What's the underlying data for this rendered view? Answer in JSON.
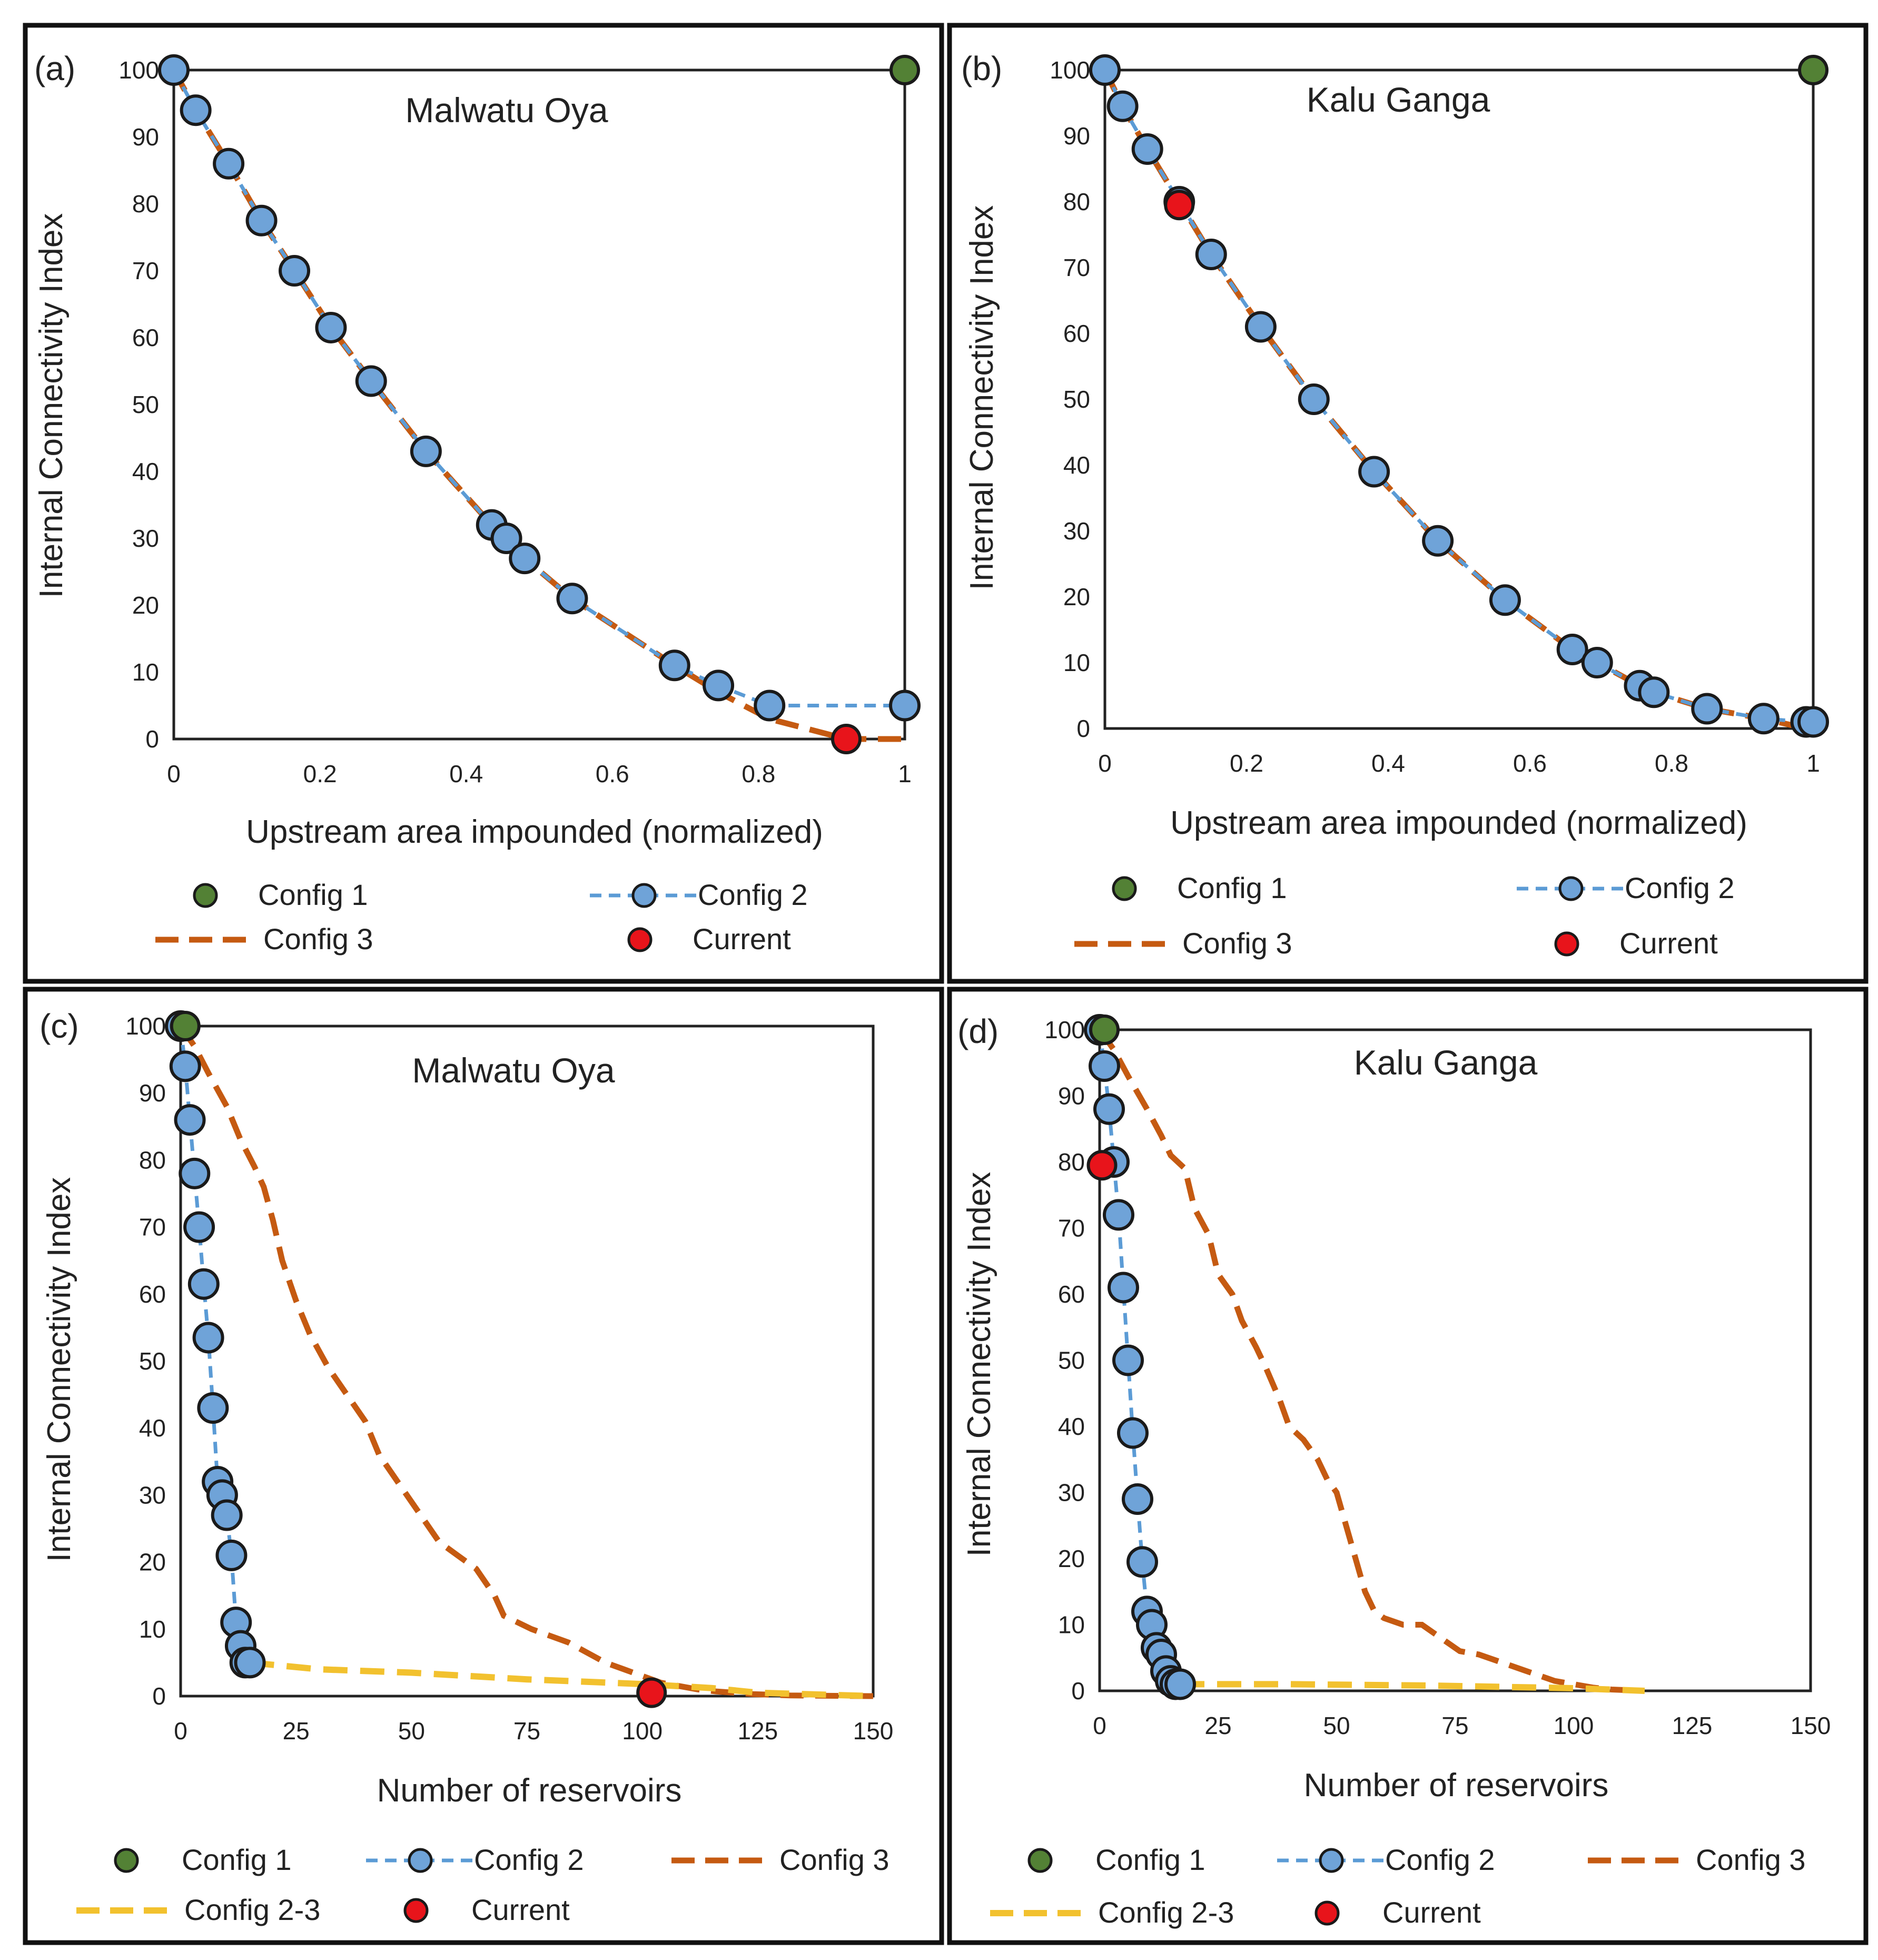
{
  "colors": {
    "config1": "#538135",
    "config2_fill": "#6fa3d8",
    "config2_line": "#5b9bd5",
    "config3": "#c55a11",
    "config23": "#f2c12e",
    "current": "#e8141b"
  },
  "chart_data": [
    {
      "type": "scatter",
      "panel": "(a)",
      "title": "Malwatu Oya",
      "xlabel": "Upstream area impounded (normalized)",
      "ylabel": "Internal Connectivity Index",
      "xlim": [
        0,
        1
      ],
      "ylim": [
        0,
        100
      ],
      "xticks": [
        0,
        0.2,
        0.4,
        0.6,
        0.8,
        1
      ],
      "xtick_labels": [
        "0",
        "0.2",
        "0.4",
        "0.6",
        "0.8",
        "1"
      ],
      "yticks": [
        0,
        10,
        20,
        30,
        40,
        50,
        60,
        70,
        80,
        90,
        100
      ],
      "ytick_labels": [
        "0",
        "10",
        "20",
        "30",
        "40",
        "50",
        "60",
        "70",
        "80",
        "90",
        "100"
      ],
      "series": [
        {
          "name": "Config 1",
          "style": "point",
          "colorKey": "config1",
          "x": [
            1
          ],
          "y": [
            100
          ]
        },
        {
          "name": "Config 2",
          "style": "dash-marker",
          "colorKey": "config2_line",
          "x": [
            0,
            0.03,
            0.075,
            0.12,
            0.165,
            0.215,
            0.27,
            0.345,
            0.435,
            0.455,
            0.48,
            0.545,
            0.685,
            0.745,
            0.815,
            1.0
          ],
          "y": [
            100,
            94,
            86,
            77.5,
            70,
            61.5,
            53.5,
            43,
            32,
            30,
            27,
            21,
            11,
            8,
            5,
            5
          ]
        },
        {
          "name": "Config 3",
          "style": "dash",
          "colorKey": "config3",
          "x": [
            0,
            0.03,
            0.075,
            0.12,
            0.165,
            0.215,
            0.27,
            0.345,
            0.435,
            0.455,
            0.48,
            0.545,
            0.685,
            0.745,
            0.815,
            0.92,
            1.0
          ],
          "y": [
            100,
            94,
            86,
            77.5,
            70,
            61.5,
            53.5,
            43,
            32,
            30,
            27,
            21,
            11,
            7,
            3,
            0,
            0
          ]
        },
        {
          "name": "Current",
          "style": "point",
          "colorKey": "current",
          "x": [
            0.92
          ],
          "y": [
            0
          ]
        }
      ],
      "legend": [
        {
          "label": "Config 1",
          "style": "point",
          "colorKey": "config1"
        },
        {
          "label": "Config 2",
          "style": "dash-marker",
          "colorKey": "config2_line"
        },
        {
          "label": "Config 3",
          "style": "dash",
          "colorKey": "config3"
        },
        {
          "label": "Current",
          "style": "point",
          "colorKey": "current"
        }
      ]
    },
    {
      "type": "scatter",
      "panel": "(b)",
      "title": "Kalu Ganga",
      "xlabel": "Upstream area impounded (normalized)",
      "ylabel": "Internal Connectivity Index",
      "xlim": [
        0,
        1
      ],
      "ylim": [
        0,
        100
      ],
      "xticks": [
        0,
        0.2,
        0.4,
        0.6,
        0.8,
        1
      ],
      "xtick_labels": [
        "0",
        "0.2",
        "0.4",
        "0.6",
        "0.8",
        "1"
      ],
      "yticks": [
        0,
        10,
        20,
        30,
        40,
        50,
        60,
        70,
        80,
        90,
        100
      ],
      "ytick_labels": [
        "0",
        "10",
        "20",
        "30",
        "40",
        "50",
        "60",
        "70",
        "80",
        "90",
        "100"
      ],
      "series": [
        {
          "name": "Config 1",
          "style": "point",
          "colorKey": "config1",
          "x": [
            1
          ],
          "y": [
            100
          ]
        },
        {
          "name": "Config 2",
          "style": "dash-marker",
          "colorKey": "config2_line",
          "x": [
            0,
            0.025,
            0.06,
            0.105,
            0.15,
            0.22,
            0.295,
            0.38,
            0.47,
            0.565,
            0.66,
            0.695,
            0.755,
            0.775,
            0.85,
            0.93,
            0.99,
            1.0
          ],
          "y": [
            100,
            94.5,
            88,
            80,
            72,
            61,
            50,
            39,
            28.5,
            19.5,
            12,
            10,
            6.5,
            5.5,
            3,
            1.5,
            1,
            1
          ]
        },
        {
          "name": "Config 3",
          "style": "dash",
          "colorKey": "config3",
          "x": [
            0,
            0.025,
            0.06,
            0.105,
            0.15,
            0.22,
            0.295,
            0.38,
            0.47,
            0.565,
            0.66,
            0.695,
            0.755,
            0.775,
            0.85,
            0.93,
            0.97,
            1.0
          ],
          "y": [
            100,
            94.5,
            88,
            80,
            72,
            61,
            50,
            39,
            28.5,
            19.5,
            12,
            10,
            6.5,
            5.5,
            3,
            1.5,
            0.5,
            0
          ]
        },
        {
          "name": "Current",
          "style": "point",
          "colorKey": "current",
          "x": [
            0.105
          ],
          "y": [
            79.5
          ]
        }
      ],
      "legend": [
        {
          "label": "Config 1",
          "style": "point",
          "colorKey": "config1"
        },
        {
          "label": "Config 2",
          "style": "dash-marker",
          "colorKey": "config2_line"
        },
        {
          "label": "Config 3",
          "style": "dash",
          "colorKey": "config3"
        },
        {
          "label": "Current",
          "style": "point",
          "colorKey": "current"
        }
      ]
    },
    {
      "type": "scatter",
      "panel": "(c)",
      "title": "Malwatu Oya",
      "xlabel": "Number of reservoirs",
      "ylabel": "Internal Connectivity Index",
      "xlim": [
        0,
        150
      ],
      "ylim": [
        0,
        100
      ],
      "xticks": [
        0,
        25,
        50,
        75,
        100,
        125,
        150
      ],
      "xtick_labels": [
        "0",
        "25",
        "50",
        "75",
        "100",
        "125",
        "150"
      ],
      "yticks": [
        0,
        10,
        20,
        30,
        40,
        50,
        60,
        70,
        80,
        90,
        100
      ],
      "ytick_labels": [
        "0",
        "10",
        "20",
        "30",
        "40",
        "50",
        "60",
        "70",
        "80",
        "90",
        "100"
      ],
      "series": [
        {
          "name": "Config 1",
          "style": "point",
          "colorKey": "config1",
          "x": [
            1
          ],
          "y": [
            100
          ]
        },
        {
          "name": "Config 2",
          "style": "dash-marker",
          "colorKey": "config2_line",
          "x": [
            0,
            1,
            2,
            3,
            4,
            5,
            6,
            7,
            8,
            9,
            10,
            11,
            12,
            13,
            14,
            15
          ],
          "y": [
            100,
            94,
            86,
            78,
            70,
            61.5,
            53.5,
            43,
            32,
            30,
            27,
            21,
            11,
            7.5,
            5,
            5
          ]
        },
        {
          "name": "Config 3",
          "style": "dash",
          "colorKey": "config3",
          "x": [
            0,
            3,
            6,
            10,
            13,
            16,
            18,
            20,
            22,
            25,
            28,
            32,
            36,
            40,
            43,
            47,
            50,
            53,
            56,
            60,
            64,
            68,
            70,
            73,
            76,
            80,
            84,
            88,
            92,
            96,
            100,
            104,
            108,
            112,
            116,
            120,
            124,
            128,
            132,
            140,
            150
          ],
          "y": [
            100,
            97,
            93,
            88,
            83,
            79,
            76,
            71,
            65,
            59,
            54,
            49,
            45,
            41,
            36,
            32,
            29,
            26,
            23,
            21,
            19,
            15,
            12,
            11,
            10,
            9,
            8,
            6.5,
            5,
            4,
            3,
            2,
            1.5,
            1,
            0.7,
            0.5,
            0.3,
            0.2,
            0.1,
            0.05,
            0
          ]
        },
        {
          "name": "Config 2-3",
          "style": "dash",
          "colorKey": "config23",
          "x": [
            15,
            30,
            50,
            75,
            100,
            115,
            125,
            150
          ],
          "y": [
            5,
            4,
            3.5,
            2.5,
            1.8,
            1.2,
            0.5,
            0
          ]
        },
        {
          "name": "Current",
          "style": "point",
          "colorKey": "current",
          "x": [
            102
          ],
          "y": [
            0.5
          ]
        }
      ],
      "legend": [
        {
          "label": "Config 1",
          "style": "point",
          "colorKey": "config1"
        },
        {
          "label": "Config 2",
          "style": "dash-marker",
          "colorKey": "config2_line"
        },
        {
          "label": "Config 3",
          "style": "dash",
          "colorKey": "config3"
        },
        {
          "label": "Config 2-3",
          "style": "dash",
          "colorKey": "config23"
        },
        {
          "label": "Current",
          "style": "point",
          "colorKey": "current"
        }
      ]
    },
    {
      "type": "scatter",
      "panel": "(d)",
      "title": "Kalu Ganga",
      "xlabel": "Number of reservoirs",
      "ylabel": "Internal Connectivity Index",
      "xlim": [
        0,
        150
      ],
      "ylim": [
        0,
        100
      ],
      "xticks": [
        0,
        25,
        50,
        75,
        100,
        125,
        150
      ],
      "xtick_labels": [
        "0",
        "25",
        "50",
        "75",
        "100",
        "125",
        "150"
      ],
      "yticks": [
        0,
        10,
        20,
        30,
        40,
        50,
        60,
        70,
        80,
        90,
        100
      ],
      "ytick_labels": [
        "0",
        "10",
        "20",
        "30",
        "40",
        "50",
        "60",
        "70",
        "80",
        "90",
        "100"
      ],
      "series": [
        {
          "name": "Config 1",
          "style": "point",
          "colorKey": "config1",
          "x": [
            1
          ],
          "y": [
            100
          ]
        },
        {
          "name": "Config 2",
          "style": "dash-marker",
          "colorKey": "config2_line",
          "x": [
            0,
            1,
            2,
            3,
            4,
            5,
            6,
            7,
            8,
            9,
            10,
            11,
            12,
            13,
            14,
            15,
            16,
            17
          ],
          "y": [
            100,
            94.5,
            88,
            80,
            72,
            61,
            50,
            39,
            29,
            19.5,
            12,
            10,
            6.5,
            5.5,
            3,
            1.5,
            1,
            1
          ]
        },
        {
          "name": "Config 3",
          "style": "dash",
          "colorKey": "config3",
          "x": [
            0,
            3,
            6,
            10,
            13,
            15,
            18,
            20,
            23,
            25,
            28,
            30,
            33,
            35,
            38,
            40,
            43,
            46,
            48,
            50,
            52,
            54,
            56,
            58,
            60,
            64,
            68,
            72,
            76,
            80,
            84,
            88,
            92,
            96,
            100,
            104,
            108,
            115
          ],
          "y": [
            100,
            97,
            93,
            88,
            84,
            81,
            79,
            73,
            69,
            63,
            60,
            56,
            52,
            49,
            44,
            40,
            38,
            35,
            32,
            30,
            25,
            20,
            15,
            12,
            11,
            10,
            10,
            8,
            6,
            5.5,
            4.5,
            3.5,
            2.5,
            1.5,
            1,
            0.5,
            0.2,
            0
          ]
        },
        {
          "name": "Config 2-3",
          "style": "dash",
          "colorKey": "config23",
          "x": [
            17,
            40,
            70,
            100,
            115
          ],
          "y": [
            1,
            1,
            0.8,
            0.4,
            0
          ]
        },
        {
          "name": "Current",
          "style": "point",
          "colorKey": "current",
          "x": [
            0.5
          ],
          "y": [
            79.5
          ]
        }
      ],
      "legend": [
        {
          "label": "Config 1",
          "style": "point",
          "colorKey": "config1"
        },
        {
          "label": "Config 2",
          "style": "dash-marker",
          "colorKey": "config2_line"
        },
        {
          "label": "Config 3",
          "style": "dash",
          "colorKey": "config3"
        },
        {
          "label": "Config 2-3",
          "style": "dash",
          "colorKey": "config23"
        },
        {
          "label": "Current",
          "style": "point",
          "colorKey": "current"
        }
      ]
    }
  ]
}
